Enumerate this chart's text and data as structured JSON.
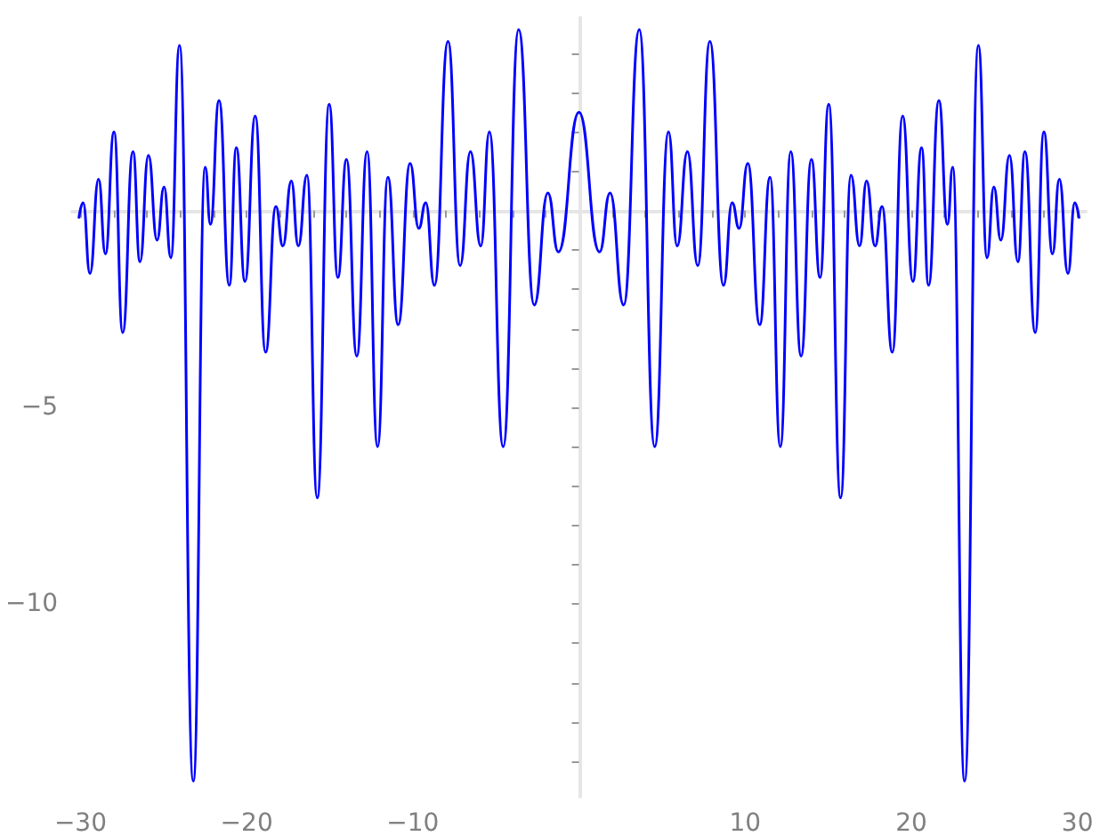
{
  "chart_data": {
    "type": "line",
    "color": "#0000ff",
    "marker": "none",
    "line_style": "solid",
    "x": [
      -30.1,
      -29.84,
      -29.43,
      -28.91,
      -28.5,
      -27.98,
      -27.46,
      -26.84,
      -26.42,
      -25.91,
      -25.39,
      -24.97,
      -24.56,
      -24.04,
      -23.21,
      -22.49,
      -22.18,
      -21.66,
      -21.04,
      -20.62,
      -20.1,
      -19.48,
      -18.86,
      -18.24,
      -17.82,
      -17.31,
      -16.89,
      -16.37,
      -15.75,
      -15.03,
      -14.51,
      -13.99,
      -13.37,
      -12.75,
      -12.12,
      -11.5,
      -10.88,
      -10.16,
      -9.64,
      -9.22,
      -8.7,
      -7.88,
      -7.15,
      -6.53,
      -5.91,
      -5.39,
      -4.56,
      -3.63,
      -2.69,
      -1.87,
      -1.24,
      0,
      1.24,
      1.87,
      2.69,
      3.63,
      4.56,
      5.39,
      5.91,
      6.53,
      7.15,
      7.88,
      8.7,
      9.22,
      9.64,
      10.16,
      10.88,
      11.5,
      12.12,
      12.75,
      13.37,
      13.99,
      14.51,
      15.03,
      15.75,
      16.37,
      16.89,
      17.31,
      17.82,
      18.24,
      18.86,
      19.48,
      20.1,
      20.62,
      21.04,
      21.66,
      22.18,
      22.49,
      23.21,
      24.04,
      24.56,
      24.97,
      25.39,
      25.91,
      26.42,
      26.84,
      27.46,
      27.98,
      28.5,
      28.91,
      29.43,
      29.84,
      30.1
    ],
    "values": [
      -0.2,
      0.2,
      -1.6,
      0.8,
      -1.1,
      2.0,
      -3.1,
      1.5,
      -1.3,
      1.4,
      -0.75,
      0.6,
      -1.2,
      4.2,
      -14.5,
      1.1,
      -0.35,
      2.8,
      -1.9,
      1.6,
      -1.8,
      2.4,
      -3.6,
      0.1,
      -0.9,
      0.75,
      -0.9,
      0.9,
      -7.3,
      2.7,
      -1.7,
      1.3,
      -3.7,
      1.5,
      -6.0,
      0.85,
      -2.9,
      1.2,
      -0.45,
      0.2,
      -1.9,
      4.3,
      -1.4,
      1.5,
      -0.9,
      2.0,
      -6.0,
      4.6,
      -2.4,
      0.45,
      -1.05,
      2.5,
      -1.05,
      0.45,
      -2.4,
      4.6,
      -6.0,
      2.0,
      -0.9,
      1.5,
      -1.4,
      4.3,
      -1.9,
      0.2,
      -0.45,
      1.2,
      -2.9,
      0.85,
      -6.0,
      1.5,
      -3.7,
      1.3,
      -1.7,
      2.7,
      -7.3,
      0.9,
      -0.9,
      0.75,
      -0.9,
      0.1,
      -3.6,
      2.4,
      -1.8,
      1.6,
      -1.9,
      2.8,
      -0.35,
      1.1,
      -14.5,
      4.2,
      -1.2,
      0.6,
      -0.75,
      1.4,
      -1.3,
      1.5,
      -3.1,
      2.0,
      -1.1,
      0.8,
      -1.6,
      0.2,
      -0.2
    ],
    "xlim": [
      -30.5,
      30.5
    ],
    "xticks": [
      {
        "value": -30,
        "label": "−30"
      },
      {
        "value": -28,
        "label": null
      },
      {
        "value": -26,
        "label": null
      },
      {
        "value": -24,
        "label": null
      },
      {
        "value": -22,
        "label": null
      },
      {
        "value": -20,
        "label": "−20"
      },
      {
        "value": -18,
        "label": null
      },
      {
        "value": -16,
        "label": null
      },
      {
        "value": -14,
        "label": null
      },
      {
        "value": -12,
        "label": null
      },
      {
        "value": -10,
        "label": "−10"
      },
      {
        "value": -8,
        "label": null
      },
      {
        "value": -6,
        "label": null
      },
      {
        "value": -4,
        "label": null
      },
      {
        "value": -2,
        "label": null
      },
      {
        "value": 2,
        "label": null
      },
      {
        "value": 4,
        "label": null
      },
      {
        "value": 6,
        "label": null
      },
      {
        "value": 8,
        "label": null
      },
      {
        "value": 10,
        "label": "10"
      },
      {
        "value": 12,
        "label": null
      },
      {
        "value": 14,
        "label": null
      },
      {
        "value": 16,
        "label": null
      },
      {
        "value": 18,
        "label": null
      },
      {
        "value": 20,
        "label": "20"
      },
      {
        "value": 22,
        "label": null
      },
      {
        "value": 24,
        "label": null
      },
      {
        "value": 26,
        "label": null
      },
      {
        "value": 28,
        "label": null
      },
      {
        "value": 30,
        "label": "30"
      }
    ],
    "ylim": [
      -14.9,
      4.9
    ],
    "yticks": [
      {
        "value": -14,
        "label": null
      },
      {
        "value": -13,
        "label": null
      },
      {
        "value": -12,
        "label": null
      },
      {
        "value": -11,
        "label": null
      },
      {
        "value": -10,
        "label": "−10"
      },
      {
        "value": -9,
        "label": null
      },
      {
        "value": -8,
        "label": null
      },
      {
        "value": -7,
        "label": null
      },
      {
        "value": -6,
        "label": null
      },
      {
        "value": -5,
        "label": "−5"
      },
      {
        "value": -4,
        "label": null
      },
      {
        "value": -3,
        "label": null
      },
      {
        "value": -2,
        "label": null
      },
      {
        "value": -1,
        "label": null
      },
      {
        "value": 1,
        "label": null
      },
      {
        "value": 2,
        "label": null
      },
      {
        "value": 3,
        "label": null
      },
      {
        "value": 4,
        "label": null
      }
    ]
  }
}
